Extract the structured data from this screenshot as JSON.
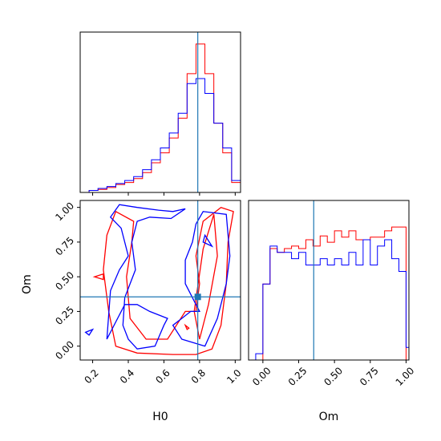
{
  "chart_data": {
    "type": "corner",
    "parameters": [
      "H0",
      "Om"
    ],
    "truth": {
      "H0": 0.79,
      "Om": 0.355
    },
    "colors": {
      "series_red": "#ff0000",
      "series_blue": "#0000ff",
      "truth": "#1f77b4",
      "axes": "#000000"
    },
    "panels": [
      {
        "id": "hist_H0",
        "type": "histogram",
        "xlim": [
          0.13,
          1.03
        ],
        "series": [
          {
            "color": "#ff0000",
            "bins": [
              0.13,
              0.18,
              0.23,
              0.28,
              0.33,
              0.38,
              0.43,
              0.48,
              0.53,
              0.58,
              0.63,
              0.68,
              0.73,
              0.78,
              0.83,
              0.88,
              0.93,
              0.98,
              1.03
            ],
            "counts": [
              0,
              2,
              3,
              5,
              8,
              10,
              14,
              20,
              30,
              40,
              55,
              75,
              120,
              150,
              120,
              70,
              40,
              10
            ]
          },
          {
            "color": "#0000ff",
            "bins": [
              0.13,
              0.18,
              0.23,
              0.28,
              0.33,
              0.38,
              0.43,
              0.48,
              0.53,
              0.58,
              0.63,
              0.68,
              0.73,
              0.78,
              0.83,
              0.88,
              0.93,
              0.98,
              1.03
            ],
            "counts": [
              0,
              2,
              4,
              6,
              9,
              12,
              16,
              23,
              33,
              45,
              60,
              80,
              110,
              115,
              100,
              70,
              45,
              12
            ]
          }
        ]
      },
      {
        "id": "contour_H0_Om",
        "type": "contour",
        "xlabel": "H0",
        "ylabel": "Om",
        "xlim": [
          0.13,
          1.03
        ],
        "ylim": [
          -0.1,
          1.05
        ],
        "xticks": [
          0.2,
          0.4,
          0.6,
          0.8,
          1.0
        ],
        "xtick_labels": [
          "0.2",
          "0.4",
          "0.6",
          "0.8",
          "1.0"
        ],
        "yticks": [
          0.0,
          0.25,
          0.5,
          0.75,
          1.0
        ],
        "ytick_labels": [
          "0.00",
          "0.25",
          "0.50",
          "0.75",
          "1.00"
        ],
        "series": [
          {
            "color": "#ff0000",
            "contours": [
              [
                [
                  0.33,
                  0.0
                ],
                [
                  0.45,
                  -0.05
                ],
                [
                  0.65,
                  -0.06
                ],
                [
                  0.78,
                  -0.06
                ],
                [
                  0.87,
                  -0.02
                ],
                [
                  0.92,
                  0.15
                ],
                [
                  0.95,
                  0.45
                ],
                [
                  0.96,
                  0.75
                ],
                [
                  0.99,
                  0.97
                ],
                [
                  0.92,
                  1.0
                ],
                [
                  0.82,
                  0.9
                ],
                [
                  0.78,
                  0.65
                ],
                [
                  0.8,
                  0.45
                ],
                [
                  0.78,
                  0.25
                ],
                [
                  0.72,
                  0.25
                ],
                [
                  0.62,
                  0.05
                ],
                [
                  0.5,
                  0.05
                ],
                [
                  0.41,
                  0.2
                ],
                [
                  0.39,
                  0.5
                ],
                [
                  0.42,
                  0.75
                ],
                [
                  0.43,
                  0.9
                ],
                [
                  0.33,
                  0.97
                ],
                [
                  0.28,
                  0.8
                ],
                [
                  0.26,
                  0.55
                ],
                [
                  0.29,
                  0.25
                ],
                [
                  0.33,
                  0.0
                ]
              ],
              [
                [
                  0.77,
                  0.25
                ],
                [
                  0.82,
                  0.7
                ],
                [
                  0.88,
                  0.95
                ],
                [
                  0.9,
                  0.65
                ],
                [
                  0.85,
                  0.3
                ],
                [
                  0.8,
                  0.05
                ],
                [
                  0.77,
                  0.25
                ]
              ],
              [
                [
                  0.21,
                  0.5
                ],
                [
                  0.26,
                  0.52
                ],
                [
                  0.26,
                  0.48
                ],
                [
                  0.21,
                  0.5
                ]
              ],
              [
                [
                  0.72,
                  0.15
                ],
                [
                  0.74,
                  0.13
                ],
                [
                  0.73,
                  0.12
                ],
                [
                  0.72,
                  0.15
                ]
              ]
            ]
          },
          {
            "color": "#0000ff",
            "contours": [
              [
                [
                  0.28,
                  0.05
                ],
                [
                  0.3,
                  0.4
                ],
                [
                  0.35,
                  0.55
                ],
                [
                  0.4,
                  0.65
                ],
                [
                  0.36,
                  0.85
                ],
                [
                  0.3,
                  0.93
                ],
                [
                  0.35,
                  1.02
                ],
                [
                  0.45,
                  1.0
                ],
                [
                  0.57,
                  0.98
                ],
                [
                  0.65,
                  0.97
                ],
                [
                  0.72,
                  0.99
                ],
                [
                  0.64,
                  0.92
                ],
                [
                  0.52,
                  0.93
                ],
                [
                  0.45,
                  0.9
                ],
                [
                  0.42,
                  0.75
                ],
                [
                  0.44,
                  0.55
                ],
                [
                  0.38,
                  0.35
                ],
                [
                  0.37,
                  0.15
                ],
                [
                  0.4,
                  0.05
                ],
                [
                  0.45,
                  -0.02
                ],
                [
                  0.55,
                  0.0
                ],
                [
                  0.6,
                  0.15
                ],
                [
                  0.62,
                  0.2
                ],
                [
                  0.52,
                  0.25
                ],
                [
                  0.45,
                  0.3
                ],
                [
                  0.38,
                  0.3
                ],
                [
                  0.28,
                  0.05
                ]
              ],
              [
                [
                  0.7,
                  0.05
                ],
                [
                  0.83,
                  0.0
                ],
                [
                  0.9,
                  0.2
                ],
                [
                  0.95,
                  0.45
                ],
                [
                  0.97,
                  0.65
                ],
                [
                  0.95,
                  0.95
                ],
                [
                  0.82,
                  0.97
                ],
                [
                  0.78,
                  0.88
                ],
                [
                  0.76,
                  0.75
                ],
                [
                  0.72,
                  0.62
                ],
                [
                  0.72,
                  0.45
                ],
                [
                  0.78,
                  0.3
                ],
                [
                  0.8,
                  0.25
                ],
                [
                  0.75,
                  0.25
                ],
                [
                  0.7,
                  0.2
                ],
                [
                  0.65,
                  0.15
                ],
                [
                  0.7,
                  0.05
                ]
              ],
              [
                [
                  0.82,
                  0.75
                ],
                [
                  0.87,
                  0.72
                ],
                [
                  0.83,
                  0.8
                ],
                [
                  0.82,
                  0.75
                ]
              ],
              [
                [
                  0.16,
                  0.1
                ],
                [
                  0.2,
                  0.12
                ],
                [
                  0.18,
                  0.08
                ],
                [
                  0.16,
                  0.1
                ]
              ]
            ]
          }
        ]
      },
      {
        "id": "hist_Om",
        "type": "histogram",
        "xlabel": "Om",
        "xlim": [
          -0.1,
          1.02
        ],
        "xticks": [
          0.0,
          0.25,
          0.5,
          0.75,
          1.0
        ],
        "xtick_labels": [
          "0.00",
          "0.25",
          "0.50",
          "0.75",
          "1.00"
        ],
        "series": [
          {
            "color": "#ff0000",
            "bins": [
              -0.1,
              -0.05,
              0.0,
              0.05,
              0.1,
              0.15,
              0.2,
              0.25,
              0.3,
              0.35,
              0.4,
              0.45,
              0.5,
              0.55,
              0.6,
              0.65,
              0.7,
              0.75,
              0.8,
              0.85,
              0.9,
              0.95,
              1.0,
              1.02
            ],
            "counts": [
              0,
              0,
              60,
              88,
              85,
              88,
              90,
              88,
              95,
              90,
              98,
              93,
              102,
              97,
              102,
              95,
              95,
              97,
              97,
              102,
              105,
              105,
              0
            ]
          },
          {
            "color": "#0000ff",
            "bins": [
              -0.1,
              -0.05,
              0.0,
              0.05,
              0.1,
              0.15,
              0.2,
              0.25,
              0.3,
              0.35,
              0.4,
              0.45,
              0.5,
              0.55,
              0.6,
              0.65,
              0.7,
              0.75,
              0.8,
              0.85,
              0.9,
              0.95,
              1.0,
              1.02
            ],
            "counts": [
              0,
              5,
              60,
              90,
              85,
              85,
              80,
              85,
              75,
              75,
              80,
              75,
              80,
              75,
              85,
              75,
              95,
              75,
              90,
              95,
              80,
              70,
              10
            ]
          }
        ]
      }
    ]
  }
}
